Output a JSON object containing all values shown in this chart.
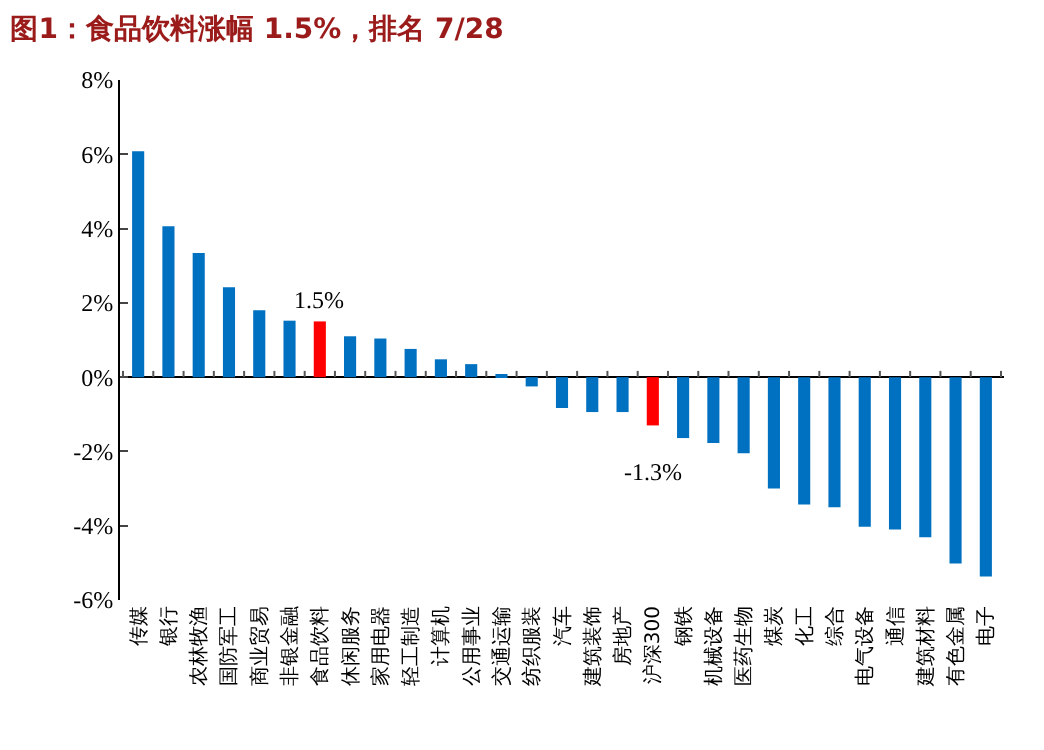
{
  "chart_data": {
    "type": "bar",
    "title": "图1：食品饮料涨幅 1.5%，排名 7/28",
    "categories": [
      "传媒",
      "银行",
      "农林牧渔",
      "国防军工",
      "商业贸易",
      "非银金融",
      "食品饮料",
      "休闲服务",
      "家用电器",
      "轻工制造",
      "计算机",
      "公用事业",
      "交通运输",
      "纺织服装",
      "汽车",
      "建筑装饰",
      "房地产",
      "沪深300",
      "钢铁",
      "机械设备",
      "医药生物",
      "煤炭",
      "化工",
      "综合",
      "电气设备",
      "通信",
      "建筑材料",
      "有色金属",
      "电子"
    ],
    "values": [
      6.08,
      4.06,
      3.34,
      2.42,
      1.8,
      1.52,
      1.5,
      1.1,
      1.04,
      0.76,
      0.48,
      0.35,
      0.07,
      -0.25,
      -0.83,
      -0.94,
      -0.94,
      -1.3,
      -1.64,
      -1.77,
      -2.05,
      -3.0,
      -3.43,
      -3.5,
      -4.03,
      -4.1,
      -4.31,
      -5.02,
      -5.37
    ],
    "colors": [
      "#0070c0",
      "#0070c0",
      "#0070c0",
      "#0070c0",
      "#0070c0",
      "#0070c0",
      "#ff0000",
      "#0070c0",
      "#0070c0",
      "#0070c0",
      "#0070c0",
      "#0070c0",
      "#0070c0",
      "#0070c0",
      "#0070c0",
      "#0070c0",
      "#0070c0",
      "#ff0000",
      "#0070c0",
      "#0070c0",
      "#0070c0",
      "#0070c0",
      "#0070c0",
      "#0070c0",
      "#0070c0",
      "#0070c0",
      "#0070c0",
      "#0070c0",
      "#0070c0"
    ],
    "value_labels": [
      null,
      null,
      null,
      null,
      null,
      null,
      "1.5%",
      null,
      null,
      null,
      null,
      null,
      null,
      null,
      null,
      null,
      null,
      "-1.3%",
      null,
      null,
      null,
      null,
      null,
      null,
      null,
      null,
      null,
      null,
      null
    ],
    "ylim": [
      -6,
      8
    ],
    "yticks": [
      {
        "value": -6,
        "label": "-6%"
      },
      {
        "value": -4,
        "label": "-4%"
      },
      {
        "value": -2,
        "label": "-2%"
      },
      {
        "value": 0,
        "label": "0%"
      },
      {
        "value": 2,
        "label": "2%"
      },
      {
        "value": 4,
        "label": "4%"
      },
      {
        "value": 6,
        "label": "6%"
      },
      {
        "value": 8,
        "label": "8%"
      }
    ]
  }
}
